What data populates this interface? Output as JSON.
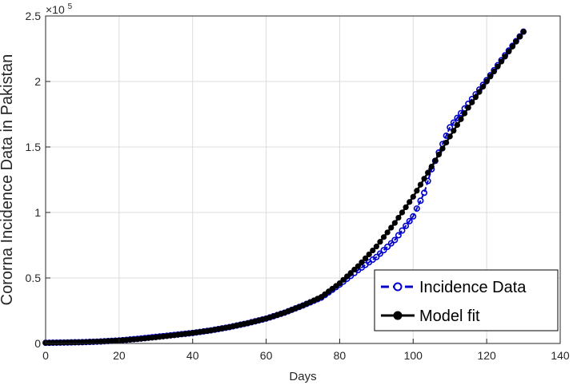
{
  "chart_data": {
    "type": "line",
    "xlabel": "Days",
    "ylabel": "Cororna  Incidence Data in Pakistan",
    "y_exponent_label": "×10",
    "y_exponent_power": "5",
    "xlim": [
      0,
      140
    ],
    "ylim": [
      0,
      250000
    ],
    "x_ticks": [
      0,
      20,
      40,
      60,
      80,
      100,
      120,
      140
    ],
    "x_tick_labels": [
      "0",
      "20",
      "40",
      "60",
      "80",
      "100",
      "120",
      "140"
    ],
    "y_ticks": [
      0,
      50000,
      100000,
      150000,
      200000,
      250000
    ],
    "y_tick_labels": [
      "0",
      "0.5",
      "1",
      "1.5",
      "2",
      "2.5"
    ],
    "grid": true,
    "legend_position": "bottom-right",
    "series": [
      {
        "name": "Incidence Data",
        "color": "#0000cc",
        "style": "dashed-circle",
        "x": [
          0,
          5,
          10,
          15,
          20,
          25,
          30,
          35,
          40,
          45,
          50,
          55,
          60,
          65,
          70,
          75,
          80,
          85,
          90,
          95,
          100,
          103,
          105,
          110,
          115,
          120,
          125,
          130
        ],
        "y": [
          500,
          700,
          1000,
          1500,
          2300,
          3500,
          5000,
          6500,
          8000,
          10000,
          12500,
          15500,
          19000,
          23500,
          29000,
          35000,
          45000,
          56000,
          66000,
          79000,
          97000,
          115000,
          133000,
          165000,
          183000,
          201000,
          220000,
          238000
        ]
      },
      {
        "name": "Model fit",
        "color": "#000000",
        "style": "solid-dot",
        "x": [
          0,
          5,
          10,
          15,
          20,
          25,
          30,
          35,
          40,
          45,
          50,
          55,
          60,
          65,
          70,
          75,
          80,
          85,
          90,
          95,
          100,
          105,
          110,
          115,
          120,
          125,
          130
        ],
        "y": [
          500,
          700,
          1000,
          1500,
          2300,
          3300,
          4700,
          6300,
          8000,
          10000,
          12500,
          15500,
          19000,
          23500,
          29000,
          35500,
          46000,
          59000,
          74000,
          92000,
          112000,
          135000,
          158000,
          180000,
          200000,
          219000,
          238000
        ]
      }
    ]
  }
}
